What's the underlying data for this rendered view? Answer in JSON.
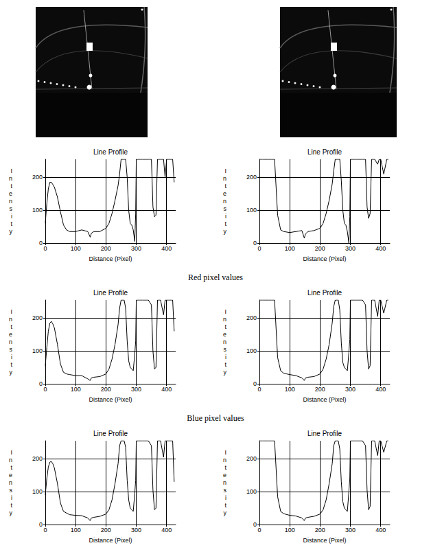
{
  "chart_data": [
    {
      "type": "line",
      "title": "Line Profile",
      "x_label": "Distance (Pixel)",
      "y_label": "Intensity",
      "color": "#000000",
      "grid": true,
      "xlim": [
        0,
        430
      ],
      "xticks": [
        0,
        100,
        200,
        300,
        400
      ],
      "ylim": [
        0,
        255
      ],
      "yticks": [
        0,
        100,
        200
      ],
      "x": [
        0,
        5,
        10,
        15,
        20,
        25,
        30,
        40,
        50,
        60,
        70,
        80,
        100,
        120,
        140,
        148,
        152,
        160,
        180,
        200,
        210,
        220,
        230,
        240,
        245,
        250,
        260,
        265,
        270,
        275,
        280,
        285,
        290,
        295,
        298,
        300,
        310,
        320,
        340,
        350,
        355,
        360,
        365,
        370,
        380,
        390,
        395,
        400,
        410,
        420,
        425
      ],
      "values": [
        60,
        120,
        165,
        185,
        185,
        178,
        170,
        140,
        95,
        55,
        40,
        35,
        35,
        40,
        35,
        18,
        30,
        35,
        35,
        45,
        60,
        90,
        130,
        175,
        210,
        255,
        255,
        255,
        200,
        100,
        60,
        55,
        40,
        5,
        90,
        255,
        255,
        255,
        255,
        255,
        110,
        80,
        85,
        255,
        255,
        255,
        200,
        255,
        255,
        255,
        185
      ]
    },
    {
      "type": "line",
      "title": "Line Profile",
      "x_label": "Distance (Pixel)",
      "y_label": "Intensity",
      "color": "#000000",
      "grid": true,
      "xlim": [
        0,
        430
      ],
      "xticks": [
        0,
        100,
        200,
        300,
        400
      ],
      "ylim": [
        0,
        255
      ],
      "yticks": [
        0,
        100,
        200
      ],
      "x": [
        0,
        5,
        10,
        15,
        20,
        25,
        30,
        40,
        50,
        60,
        70,
        80,
        100,
        120,
        140,
        148,
        152,
        160,
        180,
        200,
        210,
        220,
        230,
        240,
        245,
        250,
        260,
        265,
        270,
        275,
        280,
        285,
        290,
        295,
        298,
        300,
        310,
        320,
        340,
        350,
        355,
        360,
        365,
        370,
        380,
        390,
        395,
        400,
        410,
        420,
        425
      ],
      "values": [
        255,
        255,
        255,
        255,
        255,
        255,
        255,
        255,
        255,
        85,
        40,
        35,
        32,
        35,
        38,
        15,
        28,
        35,
        38,
        45,
        60,
        90,
        130,
        180,
        220,
        255,
        255,
        255,
        190,
        100,
        60,
        55,
        35,
        0,
        80,
        255,
        255,
        255,
        255,
        255,
        110,
        75,
        90,
        255,
        255,
        240,
        255,
        255,
        210,
        255,
        255
      ]
    },
    {
      "type": "line",
      "title": "Line Profile",
      "x_label": "Distance (Pixel)",
      "y_label": "Intensity",
      "color": "#000000",
      "grid": true,
      "xlim": [
        0,
        430
      ],
      "xticks": [
        0,
        100,
        200,
        300,
        400
      ],
      "ylim": [
        0,
        255
      ],
      "yticks": [
        0,
        100,
        200
      ],
      "x": [
        0,
        5,
        10,
        15,
        20,
        25,
        30,
        40,
        50,
        60,
        70,
        80,
        100,
        120,
        140,
        148,
        152,
        160,
        180,
        200,
        210,
        220,
        230,
        240,
        245,
        250,
        260,
        265,
        270,
        275,
        280,
        285,
        290,
        295,
        298,
        300,
        310,
        320,
        340,
        350,
        355,
        360,
        365,
        370,
        380,
        390,
        395,
        400,
        410,
        420,
        425
      ],
      "values": [
        55,
        110,
        160,
        185,
        190,
        182,
        170,
        120,
        60,
        35,
        30,
        28,
        25,
        25,
        15,
        10,
        18,
        20,
        22,
        30,
        45,
        75,
        120,
        180,
        230,
        255,
        255,
        230,
        130,
        70,
        50,
        45,
        40,
        90,
        130,
        255,
        255,
        255,
        255,
        240,
        100,
        45,
        50,
        255,
        255,
        210,
        255,
        255,
        255,
        255,
        160
      ]
    },
    {
      "type": "line",
      "title": "Line Profile",
      "x_label": "Distance (Pixel)",
      "y_label": "Intensity",
      "color": "#000000",
      "grid": true,
      "xlim": [
        0,
        430
      ],
      "xticks": [
        0,
        100,
        200,
        300,
        400
      ],
      "ylim": [
        0,
        255
      ],
      "yticks": [
        0,
        100,
        200
      ],
      "x": [
        0,
        5,
        10,
        15,
        20,
        25,
        30,
        40,
        50,
        60,
        70,
        80,
        100,
        120,
        140,
        148,
        152,
        160,
        180,
        200,
        210,
        220,
        230,
        240,
        245,
        250,
        260,
        265,
        270,
        275,
        280,
        285,
        290,
        295,
        298,
        300,
        310,
        320,
        340,
        350,
        355,
        360,
        365,
        370,
        380,
        390,
        395,
        400,
        410,
        420,
        425
      ],
      "values": [
        255,
        255,
        255,
        255,
        255,
        255,
        255,
        255,
        255,
        80,
        40,
        32,
        28,
        25,
        18,
        10,
        18,
        20,
        22,
        30,
        45,
        75,
        120,
        185,
        235,
        255,
        255,
        225,
        125,
        65,
        50,
        45,
        40,
        95,
        135,
        255,
        255,
        255,
        255,
        240,
        100,
        45,
        55,
        255,
        255,
        205,
        255,
        255,
        215,
        255,
        255
      ]
    },
    {
      "type": "line",
      "title": "Line Profile",
      "x_label": "Distance (Pixel)",
      "y_label": "Intensity",
      "color": "#000000",
      "grid": true,
      "xlim": [
        0,
        430
      ],
      "xticks": [
        0,
        100,
        200,
        300,
        400
      ],
      "ylim": [
        0,
        255
      ],
      "yticks": [
        0,
        100,
        200
      ],
      "x": [
        0,
        5,
        10,
        15,
        20,
        25,
        30,
        40,
        50,
        60,
        70,
        80,
        100,
        120,
        140,
        148,
        152,
        160,
        180,
        200,
        210,
        220,
        230,
        240,
        245,
        250,
        260,
        265,
        270,
        275,
        280,
        285,
        290,
        295,
        298,
        300,
        310,
        320,
        340,
        350,
        355,
        360,
        365,
        370,
        380,
        390,
        395,
        400,
        410,
        420,
        425
      ],
      "values": [
        90,
        140,
        175,
        190,
        192,
        185,
        172,
        125,
        65,
        40,
        35,
        30,
        28,
        27,
        20,
        12,
        20,
        22,
        25,
        32,
        45,
        75,
        125,
        185,
        240,
        255,
        255,
        235,
        135,
        75,
        50,
        45,
        40,
        95,
        135,
        255,
        255,
        255,
        255,
        240,
        105,
        45,
        50,
        255,
        255,
        205,
        255,
        255,
        255,
        255,
        130
      ]
    },
    {
      "type": "line",
      "title": "Line Profile",
      "x_label": "Distance (Pixel)",
      "y_label": "Intensity",
      "color": "#000000",
      "grid": true,
      "xlim": [
        0,
        430
      ],
      "xticks": [
        0,
        100,
        200,
        300,
        400
      ],
      "ylim": [
        0,
        255
      ],
      "yticks": [
        0,
        100,
        200
      ],
      "x": [
        0,
        5,
        10,
        15,
        20,
        25,
        30,
        40,
        50,
        60,
        70,
        80,
        100,
        120,
        140,
        148,
        152,
        160,
        180,
        200,
        210,
        220,
        230,
        240,
        245,
        250,
        260,
        265,
        270,
        275,
        280,
        285,
        290,
        295,
        298,
        300,
        310,
        320,
        340,
        350,
        355,
        360,
        365,
        370,
        380,
        390,
        395,
        400,
        410,
        420,
        425
      ],
      "values": [
        255,
        255,
        255,
        255,
        255,
        255,
        255,
        255,
        255,
        85,
        40,
        33,
        28,
        26,
        20,
        12,
        20,
        22,
        25,
        32,
        45,
        75,
        125,
        185,
        240,
        255,
        255,
        230,
        130,
        70,
        50,
        45,
        40,
        100,
        140,
        255,
        255,
        255,
        255,
        240,
        105,
        45,
        55,
        255,
        255,
        210,
        255,
        255,
        220,
        255,
        255
      ]
    }
  ],
  "captions": [
    "Red pixel values",
    "Blue pixel values"
  ]
}
